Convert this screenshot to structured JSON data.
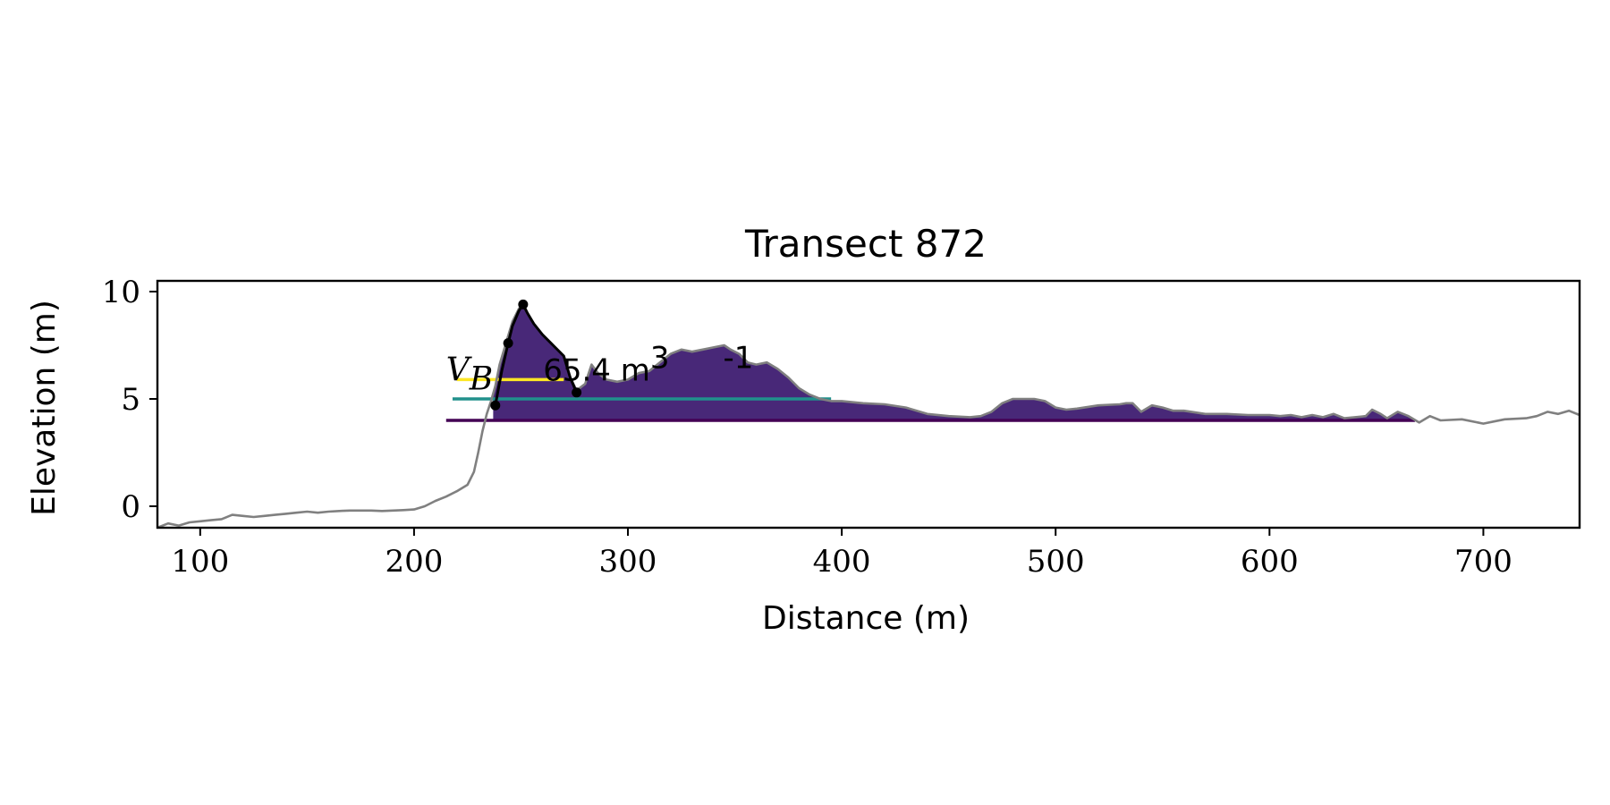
{
  "chart_data": {
    "type": "area",
    "title": "Transect 872",
    "xlabel": "Distance (m)",
    "ylabel": "Elevation (m)",
    "xlim": [
      80,
      745
    ],
    "ylim": [
      -1,
      10.5
    ],
    "xticks": [
      100,
      200,
      300,
      400,
      500,
      600,
      700
    ],
    "yticks": [
      0,
      5,
      10
    ],
    "grid": false,
    "profile": {
      "x": [
        80,
        85,
        90,
        95,
        100,
        105,
        110,
        115,
        120,
        125,
        130,
        135,
        140,
        145,
        150,
        155,
        160,
        165,
        170,
        175,
        180,
        185,
        190,
        195,
        200,
        205,
        210,
        215,
        220,
        225,
        228,
        230,
        232,
        234,
        236,
        238,
        240,
        243,
        246,
        249,
        251,
        253,
        256,
        260,
        265,
        270,
        273,
        276,
        280,
        283,
        286,
        290,
        295,
        300,
        305,
        310,
        315,
        320,
        325,
        330,
        335,
        340,
        345,
        348,
        352,
        356,
        360,
        365,
        370,
        375,
        380,
        385,
        390,
        395,
        400,
        410,
        420,
        430,
        440,
        450,
        460,
        465,
        470,
        475,
        480,
        485,
        490,
        495,
        500,
        505,
        510,
        520,
        530,
        533,
        536,
        540,
        545,
        550,
        555,
        560,
        570,
        580,
        590,
        600,
        605,
        610,
        615,
        620,
        625,
        630,
        635,
        640,
        645,
        648,
        652,
        655,
        660,
        665,
        670,
        675,
        680,
        690,
        700,
        705,
        710,
        720,
        725,
        730,
        735,
        740,
        745
      ],
      "y": [
        -1.0,
        -0.8,
        -0.9,
        -0.75,
        -0.7,
        -0.65,
        -0.6,
        -0.4,
        -0.45,
        -0.5,
        -0.45,
        -0.4,
        -0.35,
        -0.3,
        -0.25,
        -0.3,
        -0.25,
        -0.22,
        -0.2,
        -0.2,
        -0.2,
        -0.22,
        -0.2,
        -0.18,
        -0.15,
        0.0,
        0.25,
        0.45,
        0.7,
        1.0,
        1.6,
        2.5,
        3.5,
        4.3,
        4.9,
        5.6,
        6.6,
        7.6,
        8.6,
        9.2,
        9.4,
        9.0,
        8.5,
        8.0,
        7.5,
        7.0,
        6.0,
        5.4,
        5.7,
        6.6,
        6.2,
        5.9,
        5.8,
        5.9,
        6.2,
        6.3,
        6.7,
        7.1,
        7.3,
        7.2,
        7.3,
        7.4,
        7.5,
        7.3,
        7.1,
        6.7,
        6.6,
        6.7,
        6.4,
        6.0,
        5.5,
        5.2,
        5.0,
        4.9,
        4.9,
        4.8,
        4.75,
        4.6,
        4.3,
        4.2,
        4.15,
        4.2,
        4.4,
        4.8,
        5.0,
        5.0,
        5.0,
        4.9,
        4.6,
        4.5,
        4.55,
        4.7,
        4.75,
        4.8,
        4.8,
        4.4,
        4.7,
        4.6,
        4.45,
        4.45,
        4.3,
        4.3,
        4.25,
        4.25,
        4.2,
        4.25,
        4.15,
        4.25,
        4.15,
        4.3,
        4.1,
        4.15,
        4.2,
        4.5,
        4.3,
        4.1,
        4.4,
        4.2,
        3.9,
        4.2,
        4.0,
        4.05,
        3.85,
        3.95,
        4.05,
        4.1,
        4.2,
        4.4,
        4.3,
        4.45,
        4.25
      ],
      "color": "#808080"
    },
    "levels": [
      {
        "y": 5.9,
        "x_start": 220,
        "color": "#fde725"
      },
      {
        "y": 5.0,
        "x_start": 218,
        "color": "#21918c"
      },
      {
        "y": 4.0,
        "x_start": 215,
        "color": "#440154"
      }
    ],
    "fills": [
      {
        "base": 5.9,
        "x_from": 238,
        "x_to": 270,
        "color": "#fde725"
      },
      {
        "base": 4.9,
        "x_from": 238,
        "x_to": 395,
        "color": "#22a884"
      },
      {
        "base": 3.95,
        "x_from": 237,
        "x_to": 668,
        "color": "#482878"
      }
    ],
    "dune_outline": {
      "x": [
        238,
        241,
        244,
        246,
        249,
        251,
        253,
        256,
        260,
        265,
        270,
        273,
        276
      ],
      "y": [
        4.7,
        6.3,
        7.6,
        8.4,
        9.1,
        9.4,
        9.0,
        8.5,
        8.0,
        7.5,
        7.0,
        6.0,
        5.3
      ],
      "color": "#000000"
    },
    "markers": [
      {
        "x": 238,
        "y": 4.7
      },
      {
        "x": 244,
        "y": 7.6
      },
      {
        "x": 251,
        "y": 9.4
      },
      {
        "x": 276,
        "y": 5.3
      }
    ],
    "annotation": {
      "symbol": "V",
      "subscript": "B",
      "value_text": "65.4 m",
      "exp1": "3",
      "exp2": "-1",
      "x": 220,
      "y": 6.35
    }
  }
}
